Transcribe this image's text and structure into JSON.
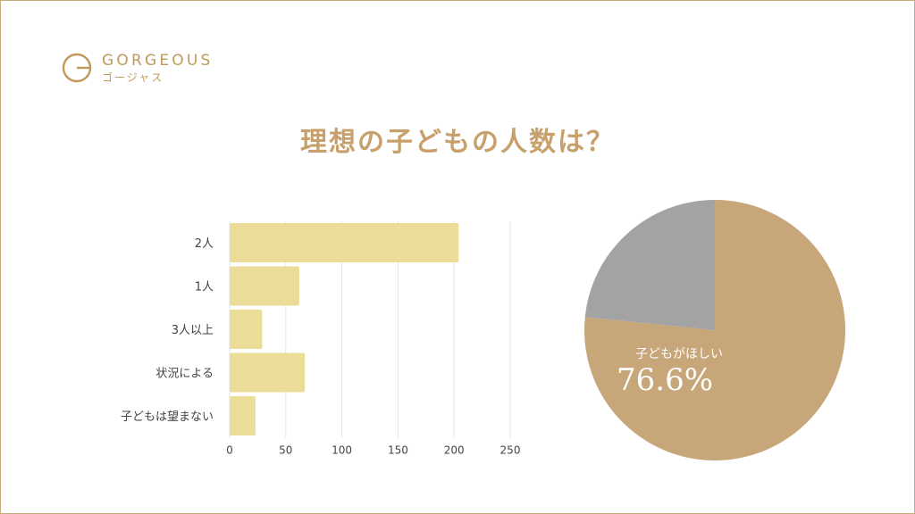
{
  "brand": {
    "name": "GORGEOUS",
    "kana": "ゴージャス",
    "icon": "brand-logo-icon",
    "color": "#c19a5b"
  },
  "title": "理想の子どもの人数は？",
  "colors": {
    "bar": "#ebdc98",
    "pie_main": "#c7a679",
    "pie_other": "#a3a3a3",
    "title": "#c8a06b",
    "border": "#c9a978"
  },
  "chart_data": [
    {
      "type": "bar",
      "orientation": "horizontal",
      "categories": [
        "2人",
        "1人",
        "3人以上",
        "状況による",
        "子どもは望まない"
      ],
      "values": [
        204,
        62,
        29,
        67,
        23
      ],
      "xticks": [
        "0",
        "50",
        "100",
        "150",
        "200",
        "250"
      ],
      "xlim": [
        0,
        250
      ],
      "grid": true
    },
    {
      "type": "pie",
      "labels": [
        "子どもがほしい",
        ""
      ],
      "values": [
        76.6,
        23.4
      ],
      "label": "子どもがほしい",
      "value_label": "76.6%"
    }
  ]
}
